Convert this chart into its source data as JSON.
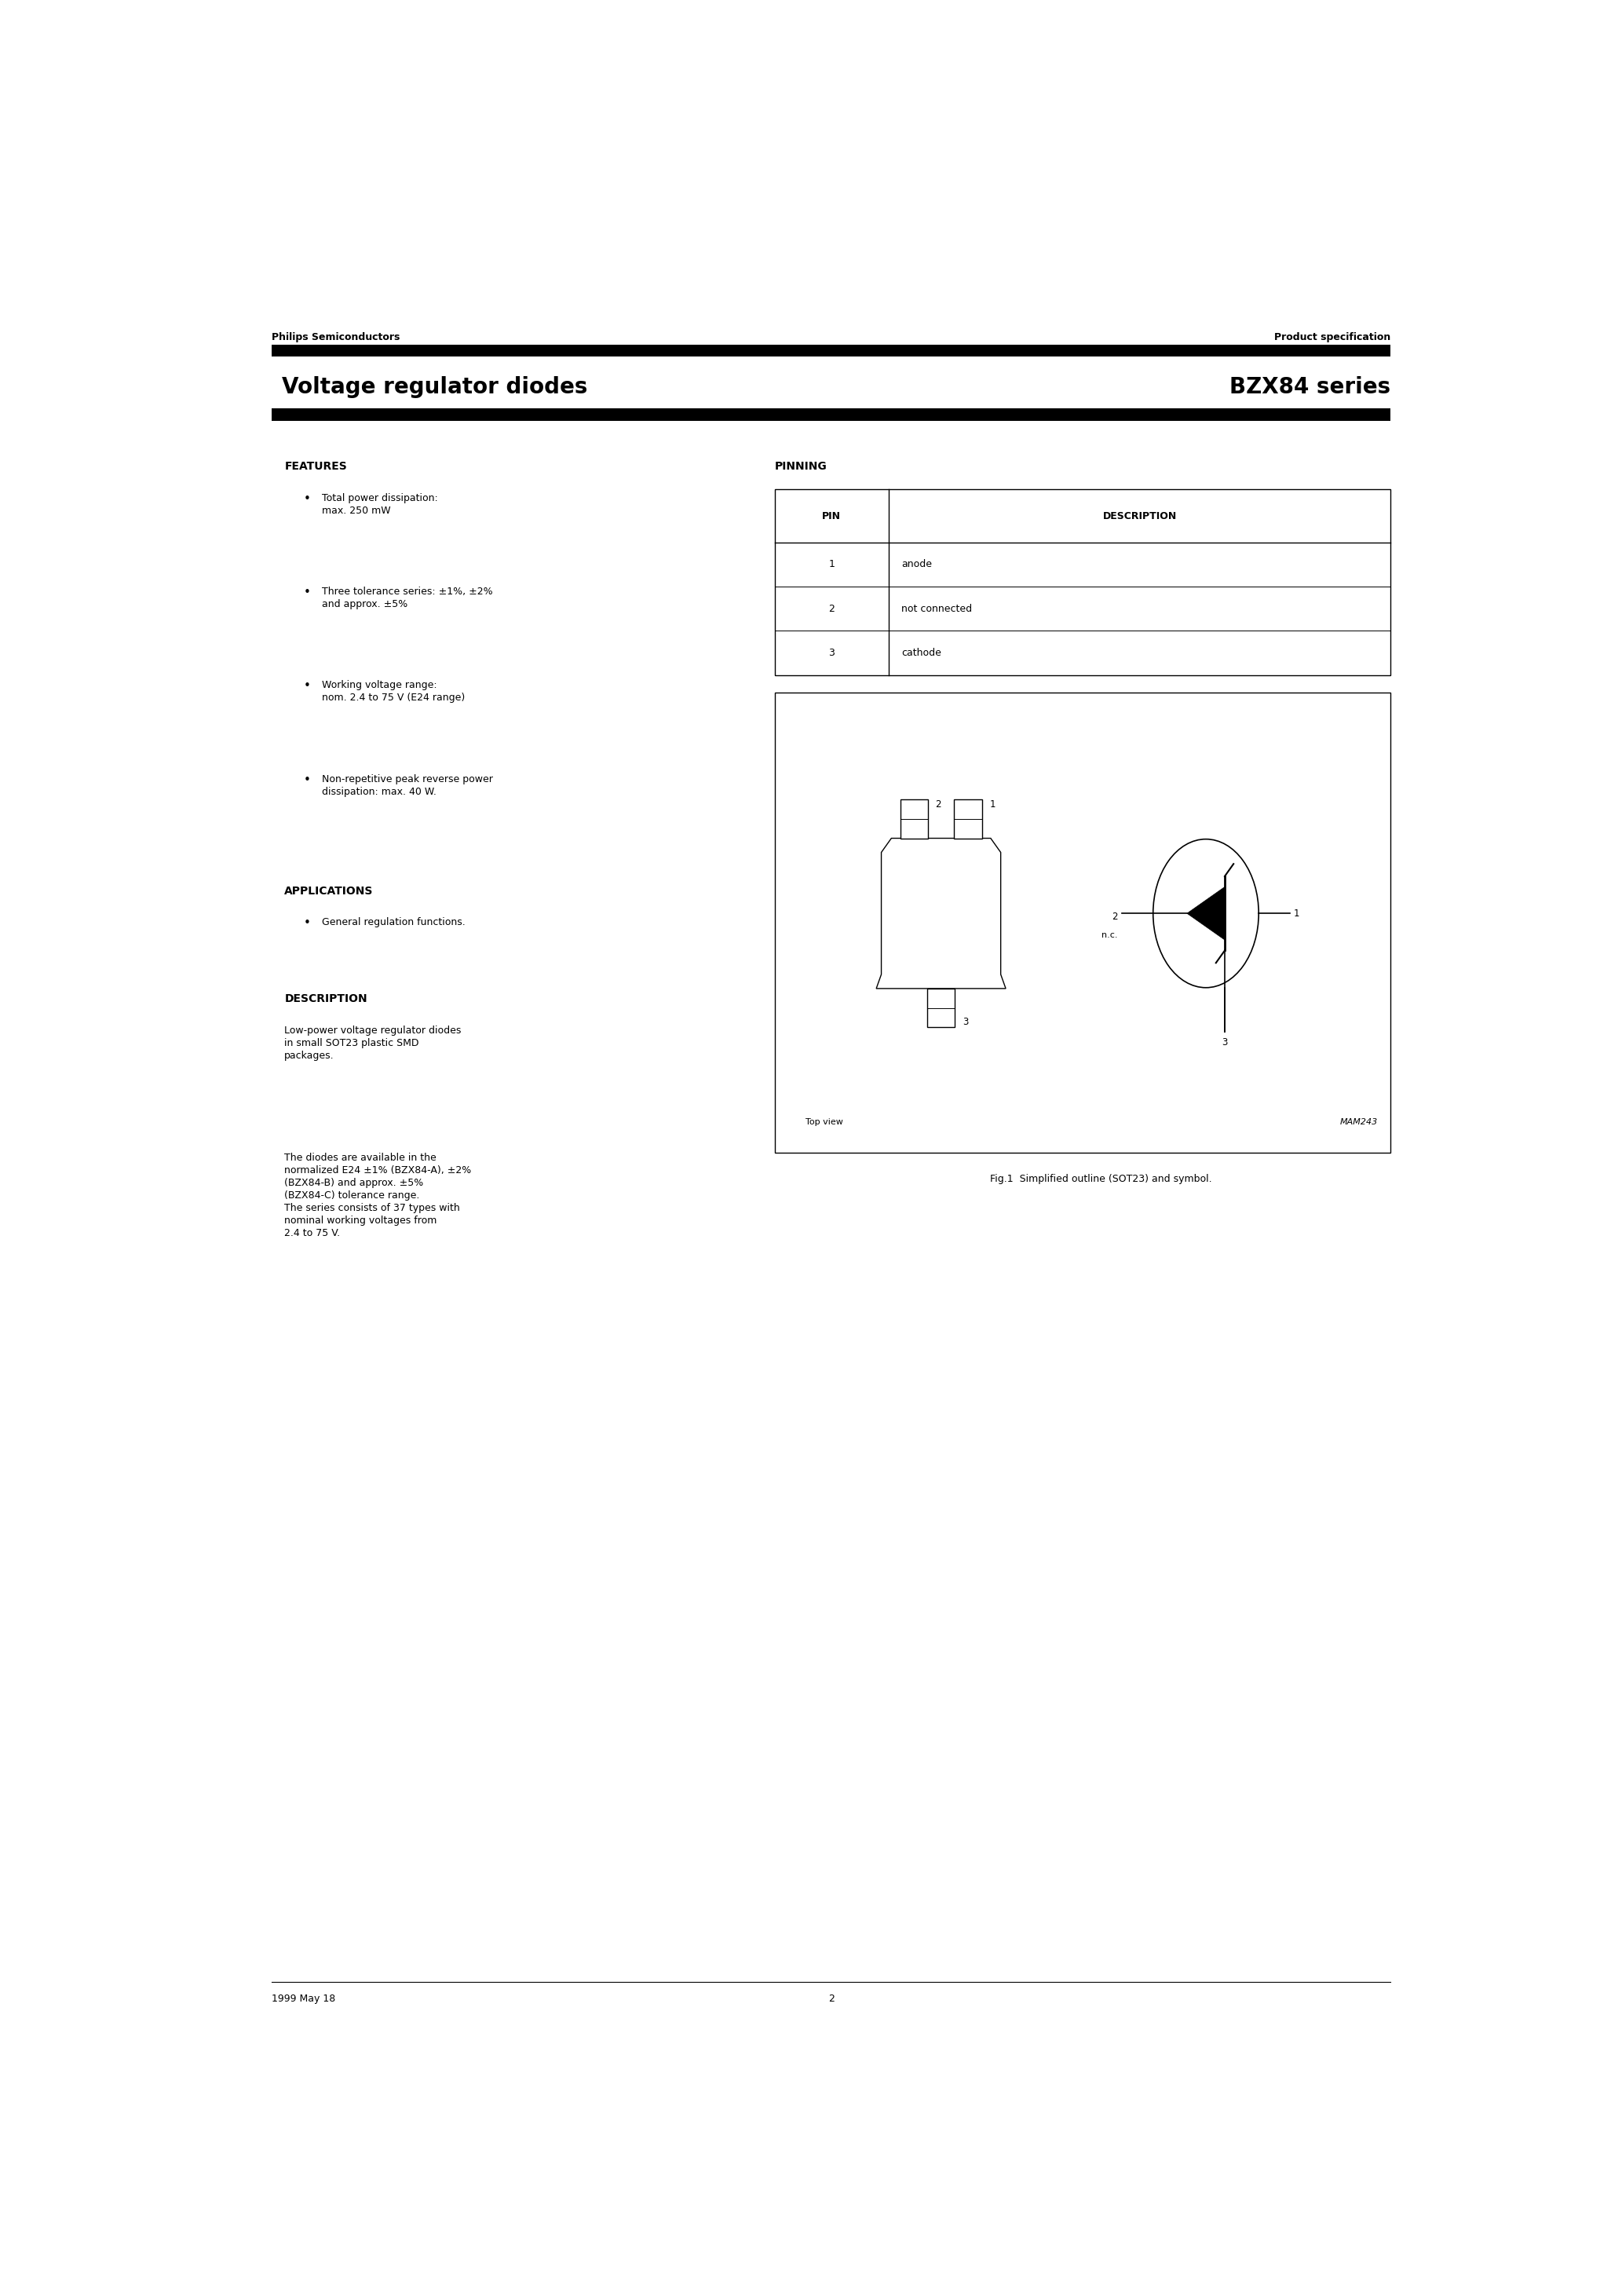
{
  "page_width": 20.66,
  "page_height": 29.24,
  "bg_color": "#ffffff",
  "header_left": "Philips Semiconductors",
  "header_right": "Product specification",
  "title_left": "Voltage regulator diodes",
  "title_right": "BZX84 series",
  "features_title": "FEATURES",
  "features_items": [
    "Total power dissipation:\nmax. 250 mW",
    "Three tolerance series: ±1%, ±2%\nand approx. ±5%",
    "Working voltage range:\nnom. 2.4 to 75 V (E24 range)",
    "Non-repetitive peak reverse power\ndissipation: max. 40 W."
  ],
  "applications_title": "APPLICATIONS",
  "applications_items": [
    "General regulation functions."
  ],
  "description_title": "DESCRIPTION",
  "description_text1": "Low-power voltage regulator diodes\nin small SOT23 plastic SMD\npackages.",
  "description_text2": "The diodes are available in the\nnormalized E24 ±1% (BZX84-A), ±2%\n(BZX84-B) and approx. ±5%\n(BZX84-C) tolerance range.\nThe series consists of 37 types with\nnominal working voltages from\n2.4 to 75 V.",
  "pinning_title": "PINNING",
  "pin_table_headers": [
    "PIN",
    "DESCRIPTION"
  ],
  "pin_rows": [
    [
      "1",
      "anode"
    ],
    [
      "2",
      "not connected"
    ],
    [
      "3",
      "cathode"
    ]
  ],
  "fig_caption": "Fig.1  Simplified outline (SOT23) and symbol.",
  "mam_label": "MAM243",
  "top_view_label": "Top view",
  "footer_left": "1999 May 18",
  "footer_center": "2"
}
